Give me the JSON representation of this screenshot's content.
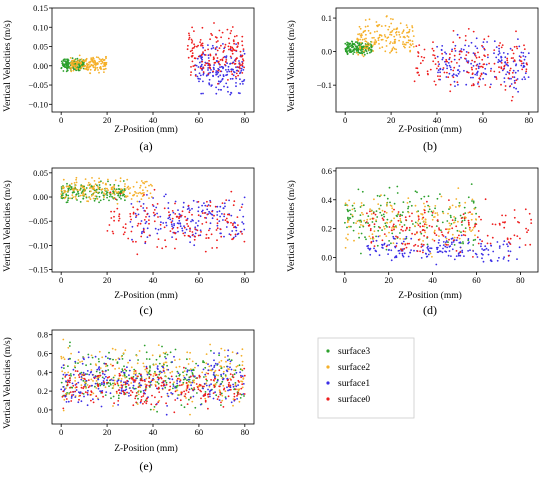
{
  "legend": {
    "entries": [
      {
        "label": "surface3",
        "color": "#2ca02c"
      },
      {
        "label": "surface2",
        "color": "#f5b02a"
      },
      {
        "label": "surface1",
        "color": "#3b2ee6"
      },
      {
        "label": "surface0",
        "color": "#ee1c1c"
      }
    ]
  },
  "chart_data": [
    {
      "type": "scatter",
      "caption": "(a)",
      "xlabel": "Z-Position (mm)",
      "ylabel": "Vertical Velocities (m/s)",
      "xlim": [
        -4,
        84
      ],
      "ylim": [
        -0.12,
        0.15
      ],
      "xticks": [
        0,
        20,
        40,
        60,
        80
      ],
      "xtick_labels": [
        "0",
        "20",
        "40",
        "60",
        "80"
      ],
      "yticks": [
        -0.1,
        -0.05,
        0.0,
        0.05,
        0.1,
        0.15
      ],
      "ytick_labels": [
        "−0.10",
        "−0.05",
        "0.00",
        "0.05",
        "0.10",
        "0.15"
      ],
      "clusters": [
        {
          "series": "surface3",
          "x": [
            0,
            10
          ],
          "y": [
            -0.02,
            0.025
          ]
        },
        {
          "series": "surface2",
          "x": [
            4,
            20
          ],
          "y": [
            -0.025,
            0.035
          ]
        },
        {
          "series": "surface1",
          "x": [
            58,
            80
          ],
          "y": [
            -0.1,
            0.08
          ]
        },
        {
          "series": "surface0",
          "x": [
            55,
            80
          ],
          "y": [
            -0.08,
            0.13
          ]
        }
      ]
    },
    {
      "type": "scatter",
      "caption": "(b)",
      "xlabel": "Z-Position (mm)",
      "ylabel": "Vertical Velocities (m/s)",
      "xlim": [
        -4,
        84
      ],
      "ylim": [
        -0.18,
        0.13
      ],
      "xticks": [
        0,
        20,
        40,
        60,
        80
      ],
      "xtick_labels": [
        "0",
        "20",
        "40",
        "60",
        "80"
      ],
      "yticks": [
        -0.1,
        0.0,
        0.1
      ],
      "ytick_labels": [
        "−0.1",
        "0.0",
        "0.1"
      ],
      "clusters": [
        {
          "series": "surface3",
          "x": [
            0,
            12
          ],
          "y": [
            -0.02,
            0.04
          ]
        },
        {
          "series": "surface2",
          "x": [
            5,
            30
          ],
          "y": [
            -0.04,
            0.12
          ]
        },
        {
          "series": "surface1",
          "x": [
            40,
            80
          ],
          "y": [
            -0.16,
            0.09
          ]
        },
        {
          "series": "surface0",
          "x": [
            30,
            80
          ],
          "y": [
            -0.17,
            0.1
          ]
        }
      ]
    },
    {
      "type": "scatter",
      "caption": "(c)",
      "xlabel": "Z-Position (mm)",
      "ylabel": "Vertical Velocities (m/s)",
      "xlim": [
        -4,
        84
      ],
      "ylim": [
        -0.155,
        0.06
      ],
      "xticks": [
        0,
        20,
        40,
        60,
        80
      ],
      "xtick_labels": [
        "0",
        "20",
        "40",
        "60",
        "80"
      ],
      "yticks": [
        -0.15,
        -0.1,
        -0.05,
        0.0,
        0.05
      ],
      "ytick_labels": [
        "−0.15",
        "−0.10",
        "−0.05",
        "0.00",
        "0.05"
      ],
      "clusters": [
        {
          "series": "surface3",
          "x": [
            0,
            28
          ],
          "y": [
            -0.02,
            0.04
          ]
        },
        {
          "series": "surface2",
          "x": [
            0,
            40
          ],
          "y": [
            -0.02,
            0.05
          ]
        },
        {
          "series": "surface1",
          "x": [
            30,
            80
          ],
          "y": [
            -0.12,
            0.03
          ]
        },
        {
          "series": "surface0",
          "x": [
            20,
            80
          ],
          "y": [
            -0.14,
            0.03
          ]
        }
      ]
    },
    {
      "type": "scatter",
      "caption": "(d)",
      "xlabel": "Z-Position (mm)",
      "ylabel": "Vertical Velocities (m/s)",
      "xlim": [
        -4,
        88
      ],
      "ylim": [
        -0.1,
        0.62
      ],
      "xticks": [
        0,
        20,
        40,
        60,
        80
      ],
      "xtick_labels": [
        "0",
        "20",
        "40",
        "60",
        "80"
      ],
      "yticks": [
        0.0,
        0.2,
        0.4,
        0.6
      ],
      "ytick_labels": [
        "0.0",
        "0.2",
        "0.4",
        "0.6"
      ],
      "clusters": [
        {
          "series": "surface3",
          "x": [
            0,
            60
          ],
          "y": [
            -0.05,
            0.59
          ]
        },
        {
          "series": "surface2",
          "x": [
            0,
            60
          ],
          "y": [
            -0.05,
            0.55
          ]
        },
        {
          "series": "surface1",
          "x": [
            10,
            80
          ],
          "y": [
            -0.08,
            0.2
          ]
        },
        {
          "series": "surface0",
          "x": [
            10,
            85
          ],
          "y": [
            -0.08,
            0.45
          ]
        }
      ]
    },
    {
      "type": "scatter",
      "caption": "(e)",
      "xlabel": "Z-Position (mm)",
      "ylabel": "Vertical Velocities (m/s)",
      "xlim": [
        -4,
        84
      ],
      "ylim": [
        -0.15,
        0.85
      ],
      "xticks": [
        0,
        20,
        40,
        60,
        80
      ],
      "xtick_labels": [
        "0",
        "20",
        "40",
        "60",
        "80"
      ],
      "yticks": [
        0.0,
        0.2,
        0.4,
        0.6,
        0.8
      ],
      "ytick_labels": [
        "0.0",
        "0.2",
        "0.4",
        "0.6",
        "0.8"
      ],
      "clusters": [
        {
          "series": "surface3",
          "x": [
            0,
            80
          ],
          "y": [
            -0.1,
            0.8
          ]
        },
        {
          "series": "surface2",
          "x": [
            0,
            80
          ],
          "y": [
            -0.1,
            0.83
          ]
        },
        {
          "series": "surface1",
          "x": [
            0,
            80
          ],
          "y": [
            -0.1,
            0.7
          ]
        },
        {
          "series": "surface0",
          "x": [
            0,
            80
          ],
          "y": [
            -0.1,
            0.6
          ]
        }
      ]
    }
  ]
}
